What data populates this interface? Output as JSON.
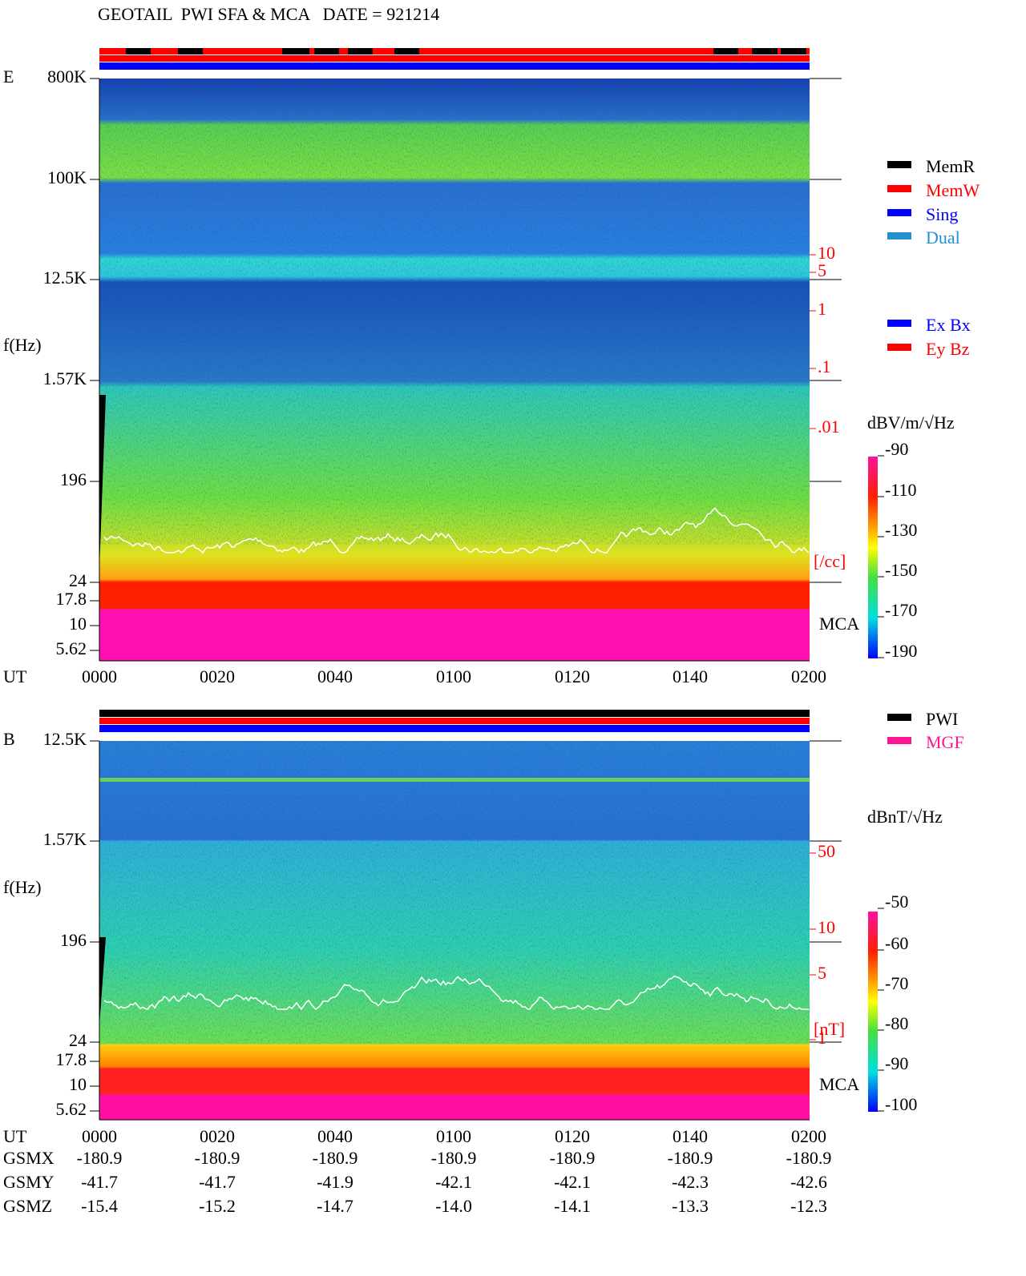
{
  "header": {
    "title": "GEOTAIL  PWI SFA & MCA   DATE = 921214"
  },
  "panels": [
    {
      "label": "E",
      "y_label": "f(Hz)",
      "freq_ticks": [
        "800K",
        "100K",
        "12.5K",
        "1.57K",
        "196",
        "24",
        "17.8",
        "10",
        "5.62"
      ],
      "time_label": "UT",
      "time_ticks": [
        "0000",
        "0020",
        "0040",
        "0100",
        "0120",
        "0140",
        "0200"
      ],
      "side_ticks": [
        "10",
        "5",
        "1",
        ".1",
        ".01",
        "[/cc]"
      ],
      "mca": "MCA",
      "legend": [
        {
          "name": "MemR",
          "color": "#000000"
        },
        {
          "name": "MemW",
          "color": "#ff0000"
        },
        {
          "name": "Sing",
          "color": "#0000ff"
        },
        {
          "name": "Dual",
          "color": "#2090d0"
        }
      ],
      "legend2": [
        {
          "name": "Ex Bx",
          "color": "#0000ff"
        },
        {
          "name": "Ey Bz",
          "color": "#ff0000"
        }
      ],
      "colorbar": {
        "unit": "dBV/m/√Hz",
        "ticks": [
          "-90",
          "-110",
          "-130",
          "-150",
          "-170",
          "-190"
        ]
      }
    },
    {
      "label": "B",
      "y_label": "f(Hz)",
      "freq_ticks": [
        "12.5K",
        "1.57K",
        "196",
        "24",
        "17.8",
        "10",
        "5.62"
      ],
      "time_label": "UT",
      "time_ticks": [
        "0000",
        "0020",
        "0040",
        "0100",
        "0120",
        "0140",
        "0200"
      ],
      "side_ticks": [
        "50",
        "10",
        "5",
        "[nT]",
        "1"
      ],
      "mca": "MCA",
      "legend": [
        {
          "name": "PWI",
          "color": "#000000"
        },
        {
          "name": "MGF",
          "color": "#ff1493"
        }
      ],
      "legend2": [],
      "colorbar": {
        "unit": "dBnT/√Hz",
        "ticks": [
          "-50",
          "-60",
          "-70",
          "-80",
          "-90",
          "-100"
        ]
      }
    }
  ],
  "orbit": {
    "rows": [
      {
        "name": "GSMX",
        "values": [
          "-180.9",
          "-180.9",
          "-180.9",
          "-180.9",
          "-180.9",
          "-180.9",
          "-180.9"
        ]
      },
      {
        "name": "GSMY",
        "values": [
          "-41.7",
          "-41.7",
          "-41.9",
          "-42.1",
          "-42.1",
          "-42.3",
          "-42.6"
        ]
      },
      {
        "name": "GSMZ",
        "values": [
          "-15.4",
          "-15.2",
          "-14.7",
          "-14.0",
          "-14.1",
          "-13.3",
          "-12.3"
        ]
      }
    ]
  }
}
